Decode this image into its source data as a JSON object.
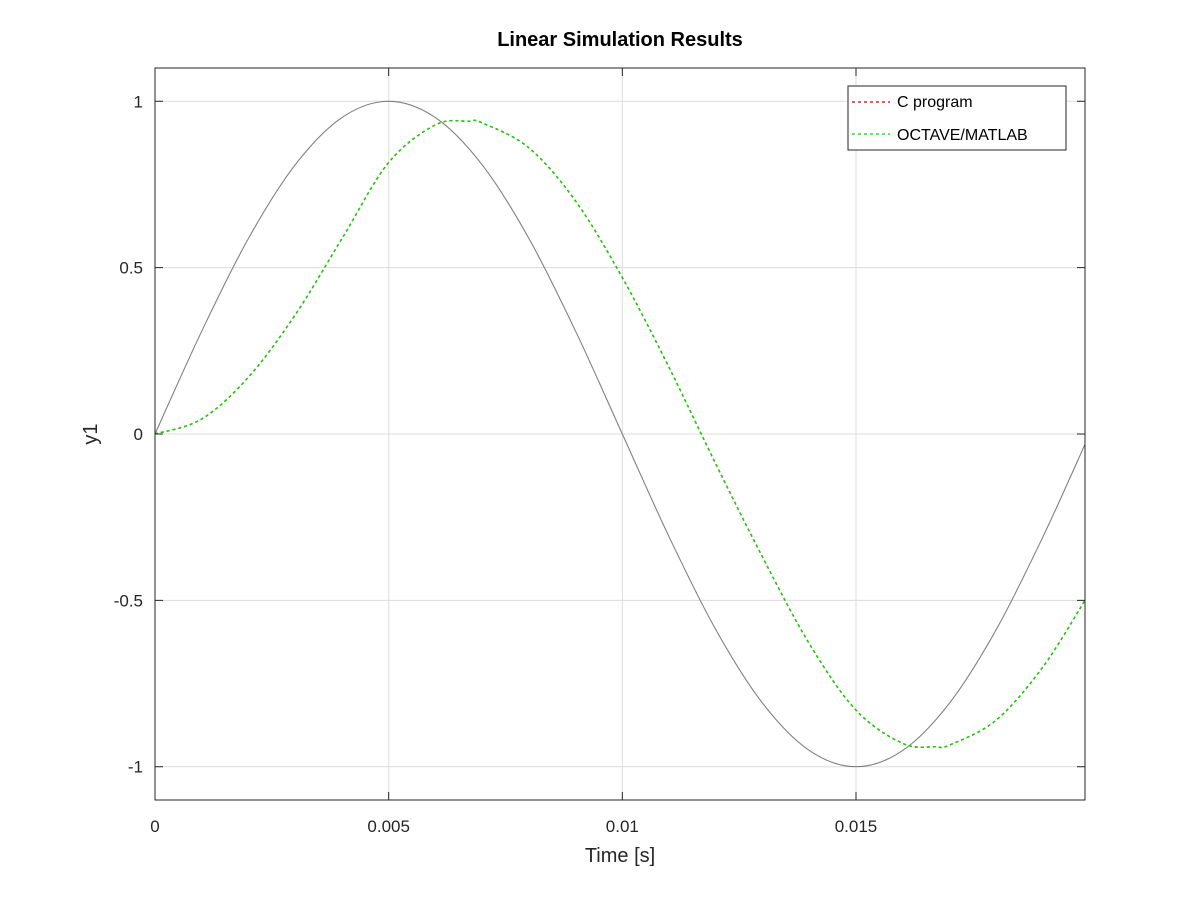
{
  "chart_data": {
    "type": "line",
    "title": "Linear Simulation Results",
    "xlabel": "Time [s]",
    "ylabel": "y1",
    "xlim": [
      0,
      0.0199
    ],
    "ylim": [
      -1.1,
      1.1
    ],
    "xticks": [
      0,
      0.005,
      0.01,
      0.015
    ],
    "xtick_labels": [
      "0",
      "0.005",
      "0.01",
      "0.015"
    ],
    "yticks": [
      1,
      0.5,
      0,
      -0.5,
      -1
    ],
    "ytick_labels": [
      "1",
      "0.5",
      "0",
      "-0.5",
      "-1"
    ],
    "grid": true,
    "legend_position": "top-right",
    "series": [
      {
        "color": "#808080",
        "style": "solid",
        "x": [
          0,
          0.001,
          0.002,
          0.003,
          0.004,
          0.005,
          0.006,
          0.007,
          0.008,
          0.009,
          0.01,
          0.011,
          0.012,
          0.013,
          0.014,
          0.015,
          0.016,
          0.017,
          0.018,
          0.019,
          0.0199
        ],
        "y": [
          0,
          0.309,
          0.588,
          0.809,
          0.951,
          1.0,
          0.951,
          0.809,
          0.588,
          0.309,
          0,
          -0.309,
          -0.588,
          -0.809,
          -0.951,
          -1.0,
          -0.951,
          -0.809,
          -0.588,
          -0.309,
          -0.031
        ]
      },
      {
        "name": "C program",
        "color": "#cc0000",
        "style": "dashed",
        "x": [
          0,
          0.001,
          0.002,
          0.003,
          0.004,
          0.005,
          0.006,
          0.0067,
          0.007,
          0.008,
          0.009,
          0.01,
          0.011,
          0.012,
          0.013,
          0.014,
          0.015,
          0.016,
          0.0167,
          0.017,
          0.018,
          0.019,
          0.0199
        ],
        "y": [
          0,
          0.045,
          0.171,
          0.358,
          0.587,
          0.816,
          0.929,
          0.94,
          0.935,
          0.86,
          0.7,
          0.47,
          0.2,
          -0.09,
          -0.37,
          -0.63,
          -0.83,
          -0.93,
          -0.94,
          -0.935,
          -0.86,
          -0.7,
          -0.5
        ]
      },
      {
        "name": "OCTAVE/MATLAB",
        "color": "#00dd00",
        "style": "dashed",
        "x": [
          0,
          0.001,
          0.002,
          0.003,
          0.004,
          0.005,
          0.006,
          0.0067,
          0.007,
          0.008,
          0.009,
          0.01,
          0.011,
          0.012,
          0.013,
          0.014,
          0.015,
          0.016,
          0.0167,
          0.017,
          0.018,
          0.019,
          0.0199
        ],
        "y": [
          0,
          0.045,
          0.171,
          0.358,
          0.587,
          0.816,
          0.929,
          0.94,
          0.935,
          0.86,
          0.7,
          0.47,
          0.2,
          -0.09,
          -0.37,
          -0.63,
          -0.83,
          -0.93,
          -0.94,
          -0.935,
          -0.86,
          -0.7,
          -0.5
        ]
      }
    ]
  }
}
